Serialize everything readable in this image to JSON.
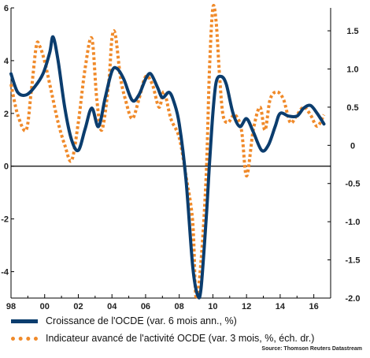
{
  "chart_data": {
    "type": "line",
    "x_ticks": [
      "98",
      "00",
      "02",
      "04",
      "06",
      "08",
      "10",
      "12",
      "14",
      "16"
    ],
    "y_left_ticks": [
      "6",
      "4",
      "2",
      "0",
      "-2",
      "-4"
    ],
    "y_right_ticks": [
      "1.5",
      "1.0",
      "0.5",
      "0",
      "-0.5",
      "-1.0",
      "-1.5",
      "-2.0"
    ],
    "y_left_range": [
      -5,
      6
    ],
    "y_right_range": [
      -2.0,
      1.8
    ],
    "x_range": [
      1998,
      2017
    ],
    "series": [
      {
        "name": "Croissance de l'OCDE (var. 6 mois ann., %)",
        "axis": "left",
        "color": "#0b3d6e",
        "x": [
          1998.0,
          1998.4,
          1998.9,
          1999.4,
          1999.9,
          2000.3,
          2000.5,
          2000.8,
          2001.2,
          2001.6,
          2002.0,
          2002.4,
          2002.8,
          2003.2,
          2003.6,
          2004.0,
          2004.3,
          2004.7,
          2005.2,
          2005.6,
          2006.0,
          2006.3,
          2006.7,
          2007.0,
          2007.4,
          2007.7,
          2008.0,
          2008.4,
          2008.8,
          2009.1,
          2009.3,
          2009.6,
          2009.8,
          2010.0,
          2010.2,
          2010.5,
          2010.8,
          2011.2,
          2011.6,
          2012.0,
          2012.4,
          2012.9,
          2013.3,
          2013.7,
          2014.0,
          2014.5,
          2015.0,
          2015.4,
          2015.8,
          2016.2,
          2016.6
        ],
        "values": [
          3.5,
          2.8,
          2.7,
          3.0,
          3.5,
          4.3,
          4.9,
          4.0,
          2.2,
          1.0,
          0.6,
          1.4,
          2.2,
          1.5,
          2.6,
          3.6,
          3.7,
          3.3,
          2.5,
          2.7,
          3.3,
          3.5,
          3.0,
          2.6,
          2.8,
          2.4,
          1.6,
          -0.5,
          -3.8,
          -4.9,
          -4.6,
          -2.0,
          0.1,
          2.0,
          3.2,
          3.4,
          3.1,
          2.0,
          1.5,
          1.8,
          1.3,
          0.6,
          0.8,
          1.5,
          2.0,
          1.9,
          1.9,
          2.2,
          2.3,
          2.0,
          1.6
        ]
      },
      {
        "name": "Indicateur avancé de l'activité OCDE (var. 3 mois, %, éch. dr.)",
        "axis": "right",
        "color": "#f08a2a",
        "x": [
          1998.0,
          1998.4,
          1998.9,
          1999.2,
          1999.5,
          1999.7,
          2000.0,
          2000.4,
          2000.8,
          2001.2,
          2001.6,
          2002.0,
          2002.4,
          2002.8,
          2003.1,
          2003.4,
          2003.8,
          2004.0,
          2004.2,
          2004.5,
          2004.8,
          2005.2,
          2005.6,
          2006.0,
          2006.4,
          2006.8,
          2007.1,
          2007.5,
          2008.0,
          2008.4,
          2008.8,
          2009.0,
          2009.3,
          2009.6,
          2009.8,
          2010.0,
          2010.2,
          2010.4,
          2010.6,
          2010.9,
          2011.3,
          2011.7,
          2012.0,
          2012.4,
          2012.8,
          2013.1,
          2013.4,
          2013.8,
          2014.2,
          2014.6,
          2015.0,
          2015.4,
          2015.8,
          2016.2,
          2016.6
        ],
        "values": [
          0.8,
          0.4,
          0.2,
          0.7,
          1.3,
          1.3,
          1.1,
          0.7,
          0.3,
          0.0,
          -0.2,
          0.3,
          1.0,
          1.4,
          0.6,
          0.2,
          0.8,
          1.4,
          1.45,
          0.9,
          0.6,
          0.35,
          0.6,
          0.9,
          0.8,
          0.5,
          0.7,
          0.35,
          0.1,
          -0.4,
          -1.0,
          -2.0,
          -1.5,
          -0.4,
          1.0,
          1.8,
          1.6,
          0.9,
          0.4,
          0.3,
          0.4,
          0.2,
          -0.4,
          0.2,
          0.5,
          0.2,
          0.6,
          0.7,
          0.6,
          0.3,
          0.4,
          0.5,
          0.4,
          0.25,
          0.4
        ]
      }
    ],
    "grid": false,
    "legend_position": "bottom-left",
    "source": "Source: Thomson Reuters Datastream"
  }
}
